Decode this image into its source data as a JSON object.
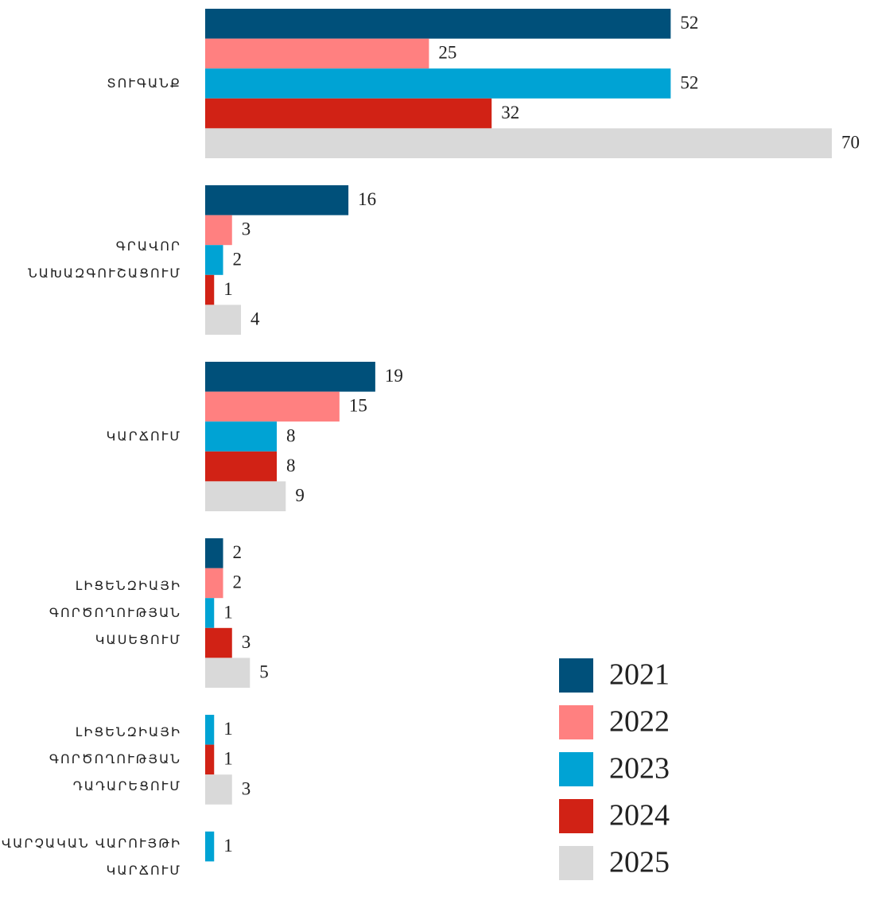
{
  "chart_data": {
    "type": "bar",
    "orientation": "horizontal",
    "categories": [
      "ՏՈՒԳԱՆՔ",
      "ԳՐԱՎՈՐ ՆԱԽԱԶԳՈՒՇԱՑՈՒՄ",
      "ԿԱՐՃՈՒՄ",
      "ԼԻՑԵՆԶԻԱՅԻ ԳՈՐԾՈՂՈՒԹՅԱՆ ԿԱՍԵՑՈՒՄ",
      "ԼԻՑԵՆԶԻԱՅԻ ԳՈՐԾՈՂՈՒԹՅԱՆ ԴԱԴԱՐԵՑՈՒՄ",
      "ՎԱՐՉԱԿԱՆ ՎԱՐՈՒՅԹԻ ԿԱՐՃՈՒՄ"
    ],
    "series": [
      {
        "name": "2021",
        "color": "#00507a",
        "values": [
          52,
          16,
          19,
          2,
          null,
          null
        ]
      },
      {
        "name": "2022",
        "color": "#ff8080",
        "values": [
          25,
          3,
          15,
          2,
          null,
          null
        ]
      },
      {
        "name": "2023",
        "color": "#00a3d4",
        "values": [
          52,
          2,
          8,
          1,
          1,
          1
        ]
      },
      {
        "name": "2024",
        "color": "#d12215",
        "values": [
          32,
          1,
          8,
          3,
          1,
          null
        ]
      },
      {
        "name": "2025",
        "color": "#d9d9d9",
        "values": [
          70,
          4,
          9,
          5,
          3,
          null
        ]
      }
    ],
    "legend": "bottom-right"
  }
}
